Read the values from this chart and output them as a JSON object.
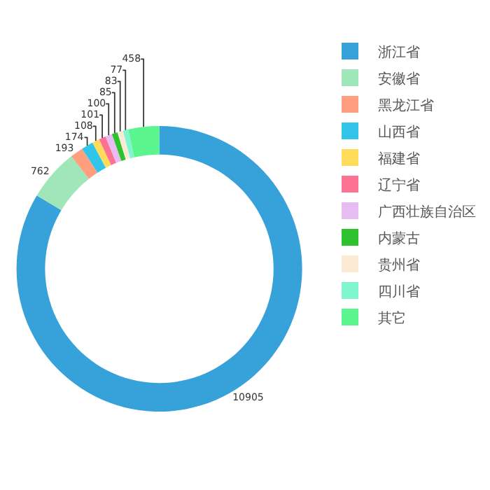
{
  "chart_data": {
    "type": "donut",
    "legend": "top right",
    "data_labels": true,
    "categories": [
      "浙江省",
      "安徽省",
      "黑龙江省",
      "山西省",
      "福建省",
      "辽宁省",
      "广西壮族自治区",
      "内蒙古",
      "贵州省",
      "四川省",
      "其它"
    ],
    "values": [
      10905,
      762,
      193,
      174,
      108,
      101,
      100,
      85,
      83,
      77,
      458
    ],
    "colors": [
      "#37a2da",
      "#9fe6b8",
      "#ff9f7f",
      "#32c5e9",
      "#ffdb5c",
      "#fb7293",
      "#e7bcf3",
      "#2ec32e",
      "#fbebd5",
      "#7ff5d0",
      "#5af58c"
    ]
  }
}
